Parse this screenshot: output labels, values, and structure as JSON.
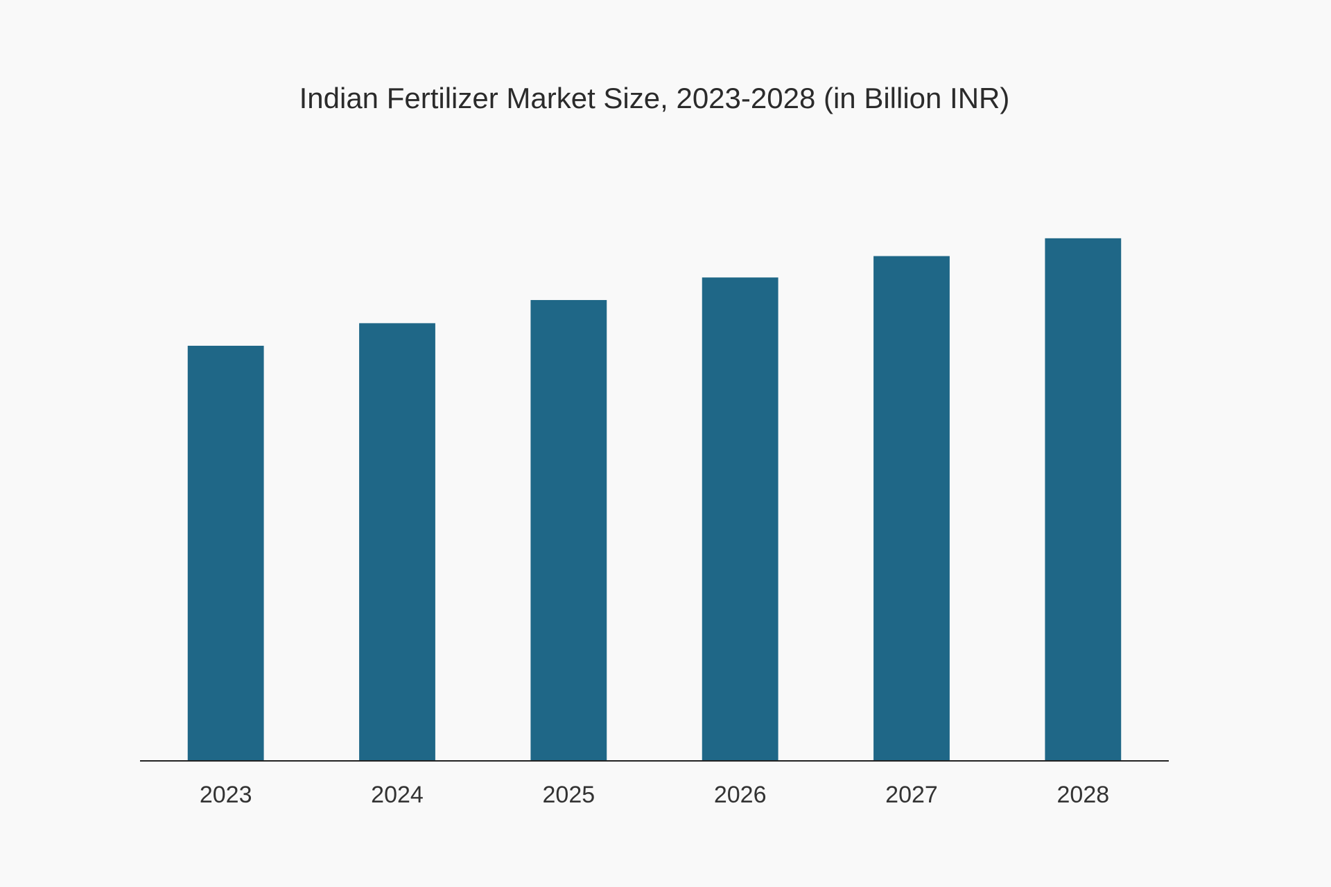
{
  "chart_data": {
    "type": "bar",
    "title": "Indian Fertilizer Market Size, 2023-2028 (in Billion INR)",
    "categories": [
      "2023",
      "2024",
      "2025",
      "2026",
      "2027",
      "2028"
    ],
    "values": [
      69.9,
      73.7,
      77.6,
      81.4,
      85.0,
      88.0
    ],
    "color": "#1f6787",
    "ylim": [
      0,
      100
    ]
  }
}
